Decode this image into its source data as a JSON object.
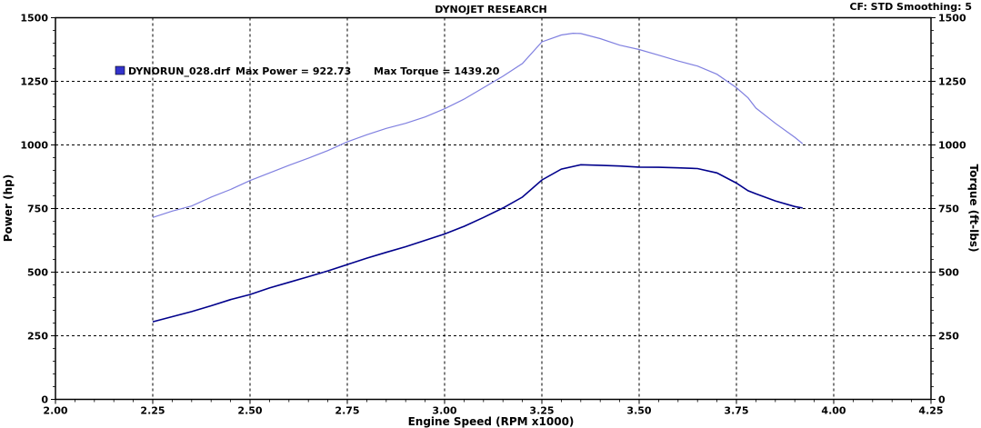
{
  "chart_data": {
    "type": "line",
    "title": "DYNOJET RESEARCH",
    "top_right_info": "CF: STD  Smoothing: 5",
    "xlabel": "Engine Speed (RPM x1000)",
    "ylabel_left": "Power (hp)",
    "ylabel_right": "Torque (ft-lbs)",
    "xlim": [
      2.0,
      4.25
    ],
    "ylim": [
      0,
      1500
    ],
    "grid": true,
    "x_ticks": [
      "2.00",
      "2.25",
      "2.50",
      "2.75",
      "3.00",
      "3.25",
      "3.50",
      "3.75",
      "4.00",
      "4.25"
    ],
    "y_ticks": [
      "0",
      "250",
      "500",
      "750",
      "1000",
      "1250",
      "1500"
    ],
    "legend": {
      "run": "DYNORUN_028.drf",
      "max_power_label": "Max Power = 922.73",
      "max_torque_label": "Max Torque = 1439.20"
    },
    "colors": {
      "power": "#00008b",
      "torque": "#8080e0",
      "legend_box": "#3333cc"
    },
    "series": [
      {
        "name": "Power",
        "axis": "left",
        "x": [
          2.25,
          2.3,
          2.35,
          2.4,
          2.45,
          2.5,
          2.55,
          2.6,
          2.65,
          2.7,
          2.75,
          2.8,
          2.85,
          2.9,
          2.95,
          3.0,
          3.05,
          3.1,
          3.15,
          3.2,
          3.25,
          3.3,
          3.35,
          3.4,
          3.45,
          3.5,
          3.55,
          3.6,
          3.65,
          3.7,
          3.75,
          3.78,
          3.8,
          3.85,
          3.9,
          3.92
        ],
        "y": [
          305,
          325,
          345,
          368,
          392,
          412,
          438,
          460,
          482,
          505,
          530,
          555,
          578,
          600,
          625,
          650,
          680,
          715,
          752,
          795,
          862,
          905,
          922,
          920,
          917,
          913,
          912,
          910,
          907,
          890,
          850,
          820,
          808,
          780,
          758,
          752
        ]
      },
      {
        "name": "Torque",
        "axis": "right",
        "x": [
          2.25,
          2.3,
          2.35,
          2.4,
          2.45,
          2.5,
          2.55,
          2.6,
          2.65,
          2.7,
          2.75,
          2.8,
          2.85,
          2.9,
          2.95,
          3.0,
          3.05,
          3.1,
          3.15,
          3.2,
          3.25,
          3.3,
          3.33,
          3.35,
          3.4,
          3.45,
          3.5,
          3.55,
          3.6,
          3.65,
          3.7,
          3.75,
          3.78,
          3.8,
          3.85,
          3.9,
          3.92
        ],
        "y": [
          715,
          740,
          760,
          795,
          825,
          860,
          890,
          920,
          948,
          978,
          1012,
          1040,
          1065,
          1085,
          1110,
          1142,
          1180,
          1225,
          1270,
          1320,
          1405,
          1432,
          1439,
          1438,
          1418,
          1392,
          1375,
          1353,
          1330,
          1310,
          1278,
          1225,
          1185,
          1145,
          1085,
          1030,
          1005
        ]
      }
    ]
  }
}
